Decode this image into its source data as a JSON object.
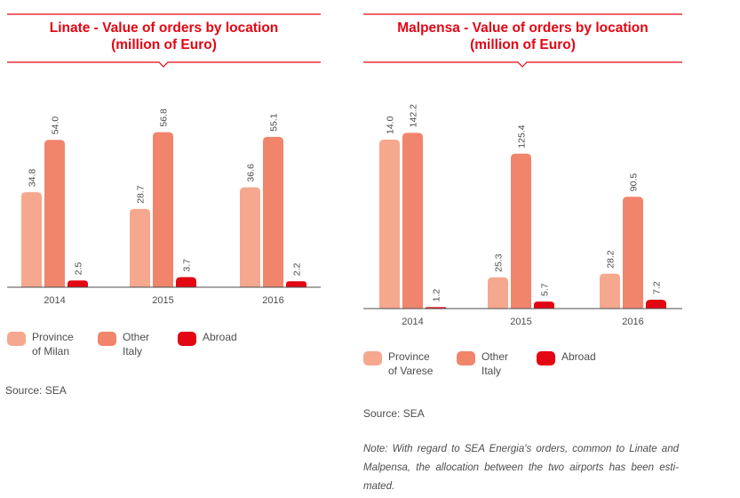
{
  "colors": {
    "province": "#f6a88f",
    "other_italy": "#f0856c",
    "abroad": "#e30613",
    "title": "#e30613",
    "axis": "#4d4d4d"
  },
  "linate": {
    "title_line1": "Linate - Value of orders by location",
    "title_line2": "(million of Euro)",
    "legend": [
      {
        "label": "Province\nof Milan",
        "color": "#f6a88f"
      },
      {
        "label": "Other\nItaly",
        "color": "#f0856c"
      },
      {
        "label": "Abroad",
        "color": "#e30613"
      }
    ],
    "source": "Source: SEA"
  },
  "malpensa": {
    "title_line1": "Malpensa - Value of orders by location",
    "title_line2": "(million of Euro)",
    "legend": [
      {
        "label": "Province\nof Varese",
        "color": "#f6a88f"
      },
      {
        "label": "Other\nItaly",
        "color": "#f0856c"
      },
      {
        "label": "Abroad",
        "color": "#e30613"
      }
    ],
    "source": "Source: SEA",
    "note": "Note: With regard to SEA Energia's orders, common to Linate and Malpensa, the allocation between the two airports has been esti-mated."
  },
  "chart_data": [
    {
      "type": "bar",
      "title": "Linate - Value of orders by location (million of Euro)",
      "categories": [
        "2014",
        "2015",
        "2016"
      ],
      "series": [
        {
          "name": "Province of Milan",
          "values": [
            34.8,
            28.7,
            36.6
          ],
          "labels": [
            "34.8",
            "28.7",
            "36.6"
          ],
          "color": "#f6a88f"
        },
        {
          "name": "Other Italy",
          "values": [
            54.0,
            56.8,
            55.1
          ],
          "labels": [
            "54.0",
            "56.8",
            "55.1"
          ],
          "color": "#f0856c"
        },
        {
          "name": "Abroad",
          "values": [
            2.5,
            3.7,
            2.2
          ],
          "labels": [
            "2.5",
            "3.7",
            "2.2"
          ],
          "color": "#e30613"
        }
      ],
      "ylim": [
        0,
        60
      ],
      "grid": false,
      "legend_position": "bottom-left",
      "xlabel": "",
      "ylabel": ""
    },
    {
      "type": "bar",
      "title": "Malpensa - Value of orders by location (million of Euro)",
      "categories": [
        "2014",
        "2015",
        "2016"
      ],
      "series": [
        {
          "name": "Province of Varese",
          "values": [
            14.0,
            25.3,
            28.2
          ],
          "labels": [
            "14.0",
            "25.3",
            "28.2"
          ],
          "color": "#f6a88f"
        },
        {
          "name": "Other Italy",
          "values": [
            142.2,
            125.4,
            90.5
          ],
          "labels": [
            "142.2",
            "125.4",
            "90.5"
          ],
          "color": "#f0856c"
        },
        {
          "name": "Abroad",
          "values": [
            1.2,
            5.7,
            7.2
          ],
          "labels": [
            "1.2",
            "5.7",
            "7.2"
          ],
          "color": "#e30613"
        }
      ],
      "scale_note": "Province of Varese 2014 bar is drawn at nearly the height of the 142.2 bar",
      "grid": false,
      "legend_position": "bottom-left",
      "xlabel": "",
      "ylabel": ""
    }
  ]
}
